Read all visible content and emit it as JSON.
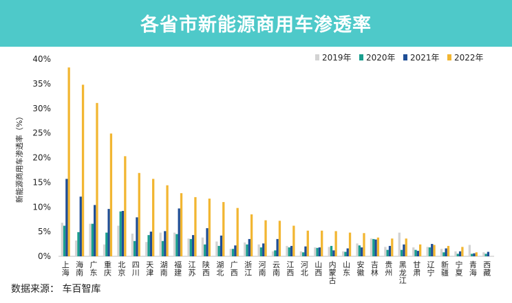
{
  "banner": {
    "title": "各省市新能源商用车渗透率"
  },
  "source": "数据来源：  车百智库",
  "colors": {
    "banner": "#4ec9c9",
    "s2019": "#d3d3d3",
    "s2020": "#1a9e8e",
    "s2021": "#1f4e96",
    "s2022": "#f2b632"
  },
  "chart_data": {
    "type": "bar",
    "title": "各省市新能源商用车渗透率",
    "ylabel": "新能源商用车渗透率（%）",
    "xlabel": "",
    "ylim": [
      0,
      40
    ],
    "yticks": [
      "0%",
      "5%",
      "10%",
      "15%",
      "20%",
      "25%",
      "30%",
      "35%",
      "40%"
    ],
    "legend_position": "top-right",
    "categories": [
      "上海",
      "海南",
      "广东",
      "重庆",
      "北京",
      "四川",
      "天津",
      "湖南",
      "福建",
      "江苏",
      "陕西",
      "湖北",
      "广西",
      "浙江",
      "河南",
      "云南",
      "江西",
      "河北",
      "山西",
      "内蒙古",
      "山东",
      "安徽",
      "吉林",
      "贵州",
      "黑龙江",
      "甘肃",
      "辽宁",
      "新疆",
      "宁夏",
      "青海",
      "西藏"
    ],
    "series": [
      {
        "name": "2019年",
        "values": [
          6.8,
          3.2,
          6.6,
          2.4,
          6.2,
          4.6,
          2.9,
          4.8,
          4.8,
          3.6,
          3.8,
          3.0,
          1.5,
          2.8,
          2.4,
          1.0,
          2.1,
          1.0,
          1.8,
          1.9,
          1.0,
          2.6,
          3.6,
          1.9,
          4.8,
          1.8,
          1.9,
          1.5,
          1.0,
          2.3,
          0.8
        ]
      },
      {
        "name": "2020年",
        "values": [
          6.2,
          4.9,
          6.6,
          4.8,
          9.1,
          3.1,
          4.3,
          3.1,
          4.5,
          3.5,
          2.4,
          2.1,
          1.5,
          2.4,
          1.8,
          1.2,
          1.8,
          0.8,
          1.7,
          2.1,
          0.9,
          2.2,
          3.5,
          1.3,
          1.3,
          1.3,
          1.8,
          0.8,
          0.5,
          0.5,
          0.5
        ]
      },
      {
        "name": "2021年",
        "values": [
          15.7,
          12.1,
          10.4,
          9.6,
          9.2,
          7.9,
          5.0,
          5.1,
          9.7,
          4.3,
          5.7,
          4.2,
          2.2,
          3.5,
          2.6,
          3.5,
          2.1,
          2.0,
          1.8,
          1.2,
          1.6,
          1.8,
          3.4,
          2.1,
          2.4,
          1.1,
          2.5,
          1.6,
          1.0,
          0.6,
          0.9
        ]
      },
      {
        "name": "2022年",
        "values": [
          38.3,
          34.8,
          31.1,
          24.9,
          20.3,
          16.9,
          15.7,
          14.4,
          12.8,
          12.0,
          11.7,
          11.0,
          9.8,
          8.5,
          7.3,
          7.2,
          6.2,
          5.2,
          5.2,
          5.1,
          4.8,
          4.7,
          3.8,
          3.6,
          3.6,
          2.4,
          2.3,
          2.1,
          1.9,
          0.8,
          0.0
        ]
      }
    ]
  }
}
